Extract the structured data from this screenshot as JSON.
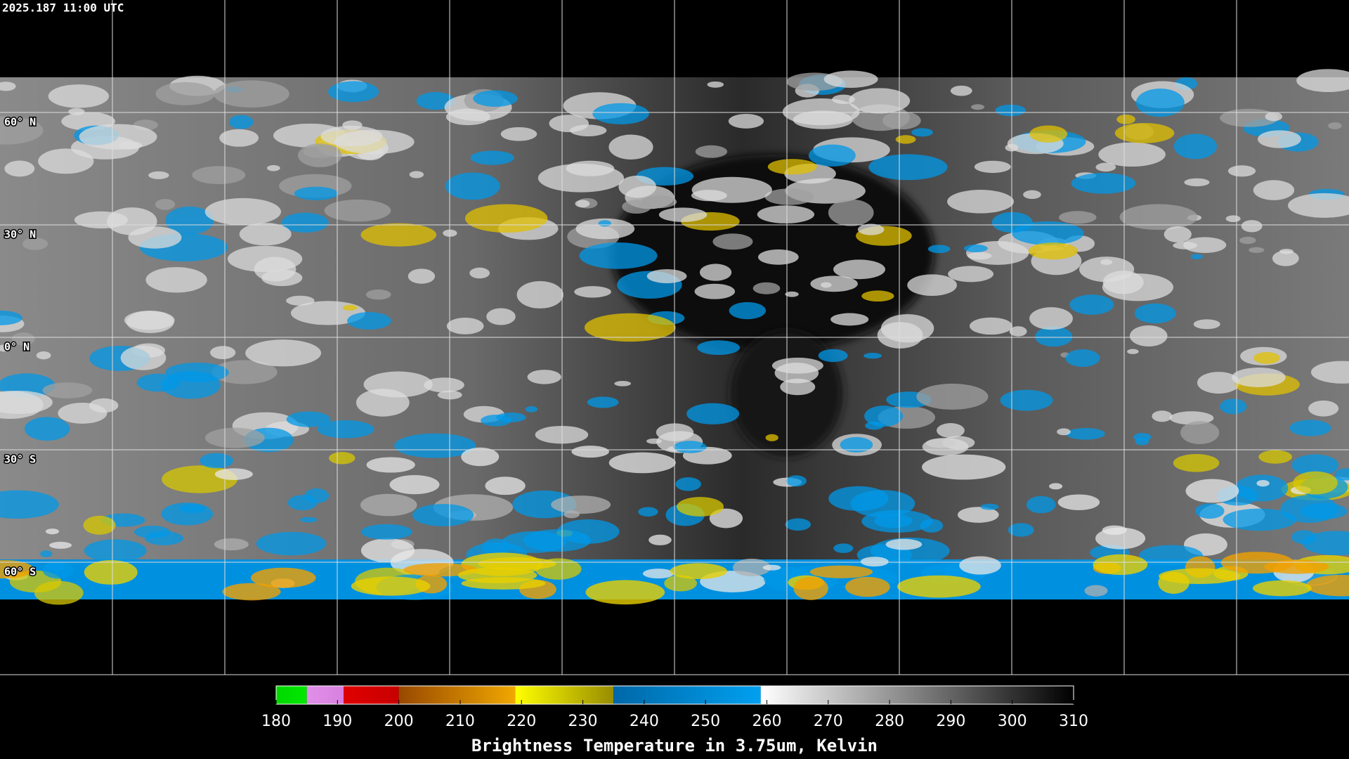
{
  "timestamp": "2025.187 11:00 UTC",
  "map": {
    "latitude_labels": [
      "60° N",
      "30° N",
      "0° N",
      "30° S",
      "60° S"
    ]
  },
  "colorbar": {
    "title": "Brightness Temperature in 3.75um, Kelvin",
    "range": [
      180,
      310
    ],
    "ticks": [
      180,
      190,
      200,
      210,
      220,
      230,
      240,
      250,
      260,
      270,
      280,
      290,
      300,
      310
    ],
    "segments": [
      {
        "from": 180,
        "to": 185,
        "colors": [
          "#00d800",
          "#00e800"
        ]
      },
      {
        "from": 185,
        "to": 191,
        "colors": [
          "#e090e8",
          "#d880e0"
        ]
      },
      {
        "from": 191,
        "to": 200,
        "colors": [
          "#e00000",
          "#c80000"
        ]
      },
      {
        "from": 200,
        "to": 219,
        "colors": [
          "#984800",
          "#f0a800"
        ]
      },
      {
        "from": 219,
        "to": 235,
        "colors": [
          "#ffff00",
          "#988c00"
        ]
      },
      {
        "from": 235,
        "to": 259,
        "colors": [
          "#0068a8",
          "#00a0f0"
        ]
      },
      {
        "from": 259,
        "to": 310,
        "colors": [
          "#ffffff",
          "#000000"
        ]
      }
    ]
  }
}
